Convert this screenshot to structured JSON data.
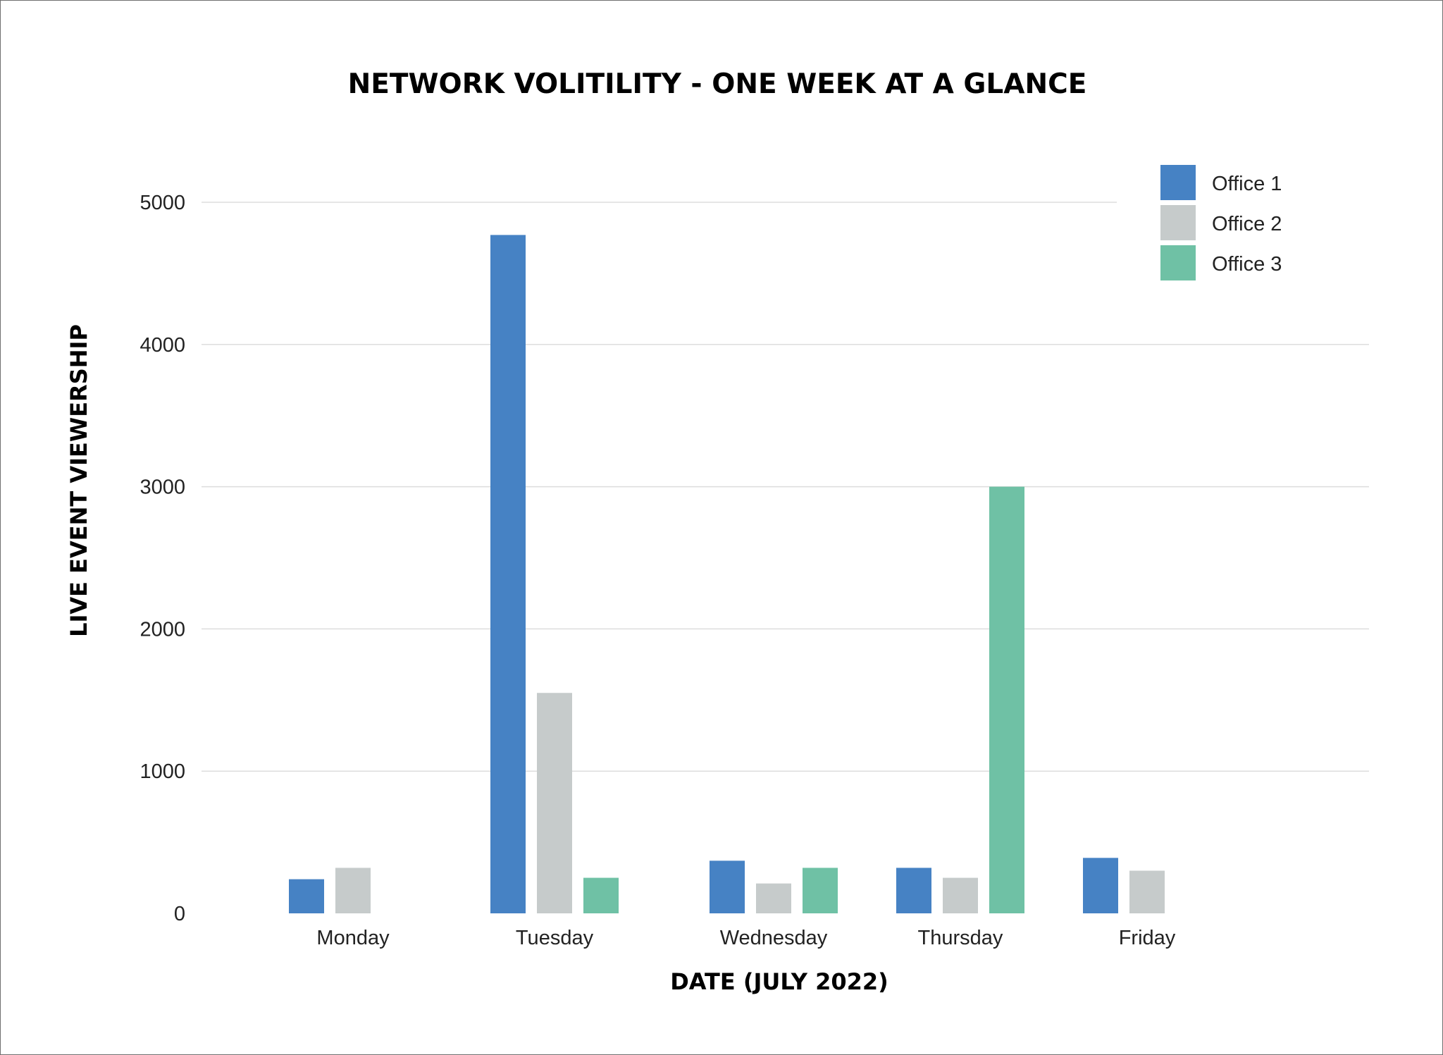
{
  "chart_data": {
    "type": "bar",
    "title": "NETWORK VOLITILITY - ONE WEEK AT A GLANCE",
    "xlabel": "DATE (JULY 2022)",
    "ylabel": "LIVE EVENT VIEWERSHIP",
    "categories": [
      "Monday",
      "Tuesday",
      "Wednesday",
      "Thursday",
      "Friday"
    ],
    "ylim": [
      0,
      5000
    ],
    "yticks": [
      0,
      1000,
      2000,
      3000,
      4000,
      5000
    ],
    "grid": true,
    "legend_position": "top-right",
    "series": [
      {
        "name": "Office 1",
        "color": "#4682c4",
        "values": [
          240,
          4770,
          370,
          320,
          390
        ]
      },
      {
        "name": "Office 2",
        "color": "#c6cbcb",
        "values": [
          320,
          1550,
          210,
          250,
          300
        ]
      },
      {
        "name": "Office 3",
        "color": "#6fc1a5",
        "values": [
          null,
          250,
          320,
          3000,
          null
        ]
      }
    ]
  }
}
